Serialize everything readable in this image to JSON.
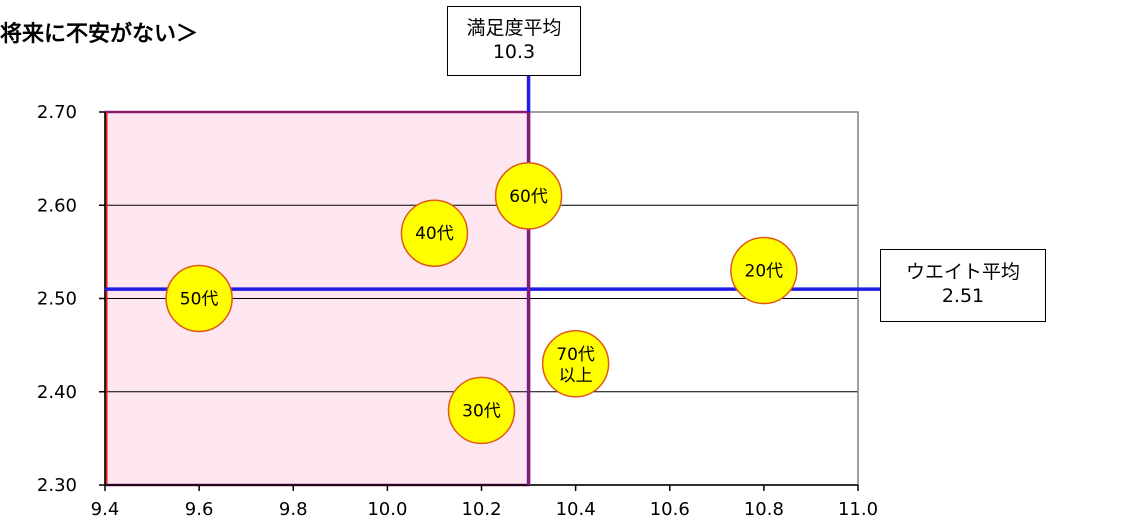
{
  "page_title": "将来に不安がない＞",
  "chart_data": {
    "type": "scatter",
    "title": "将来に不安がない＞",
    "xlabel": "",
    "ylabel": "",
    "xlim": [
      9.4,
      11.0
    ],
    "ylim": [
      2.3,
      2.7
    ],
    "x_ticks": [
      "9.4",
      "9.6",
      "9.8",
      "10.0",
      "10.2",
      "10.4",
      "10.6",
      "10.8",
      "11.0"
    ],
    "y_ticks": [
      "2.30",
      "2.40",
      "2.50",
      "2.60",
      "2.70"
    ],
    "points": [
      {
        "label": "20代",
        "x": 10.8,
        "y": 2.53
      },
      {
        "label": "30代",
        "x": 10.2,
        "y": 2.38
      },
      {
        "label": "40代",
        "x": 10.1,
        "y": 2.57
      },
      {
        "label": "50代",
        "x": 9.6,
        "y": 2.5
      },
      {
        "label": "60代",
        "x": 10.3,
        "y": 2.61
      },
      {
        "label": "70代\n以上",
        "x": 10.4,
        "y": 2.43
      }
    ],
    "averages": {
      "x": {
        "label": "満足度平均",
        "value": "10.3"
      },
      "y": {
        "label": "ウエイト平均",
        "value": "2.51"
      }
    },
    "highlight_region": {
      "x": [
        9.4,
        10.3
      ],
      "y": [
        2.3,
        2.7
      ],
      "color": "#fde6f0"
    },
    "grid": true,
    "colors": {
      "marker_fill": "#ffff00",
      "marker_stroke": "#e05a1a",
      "average_line": "#1e1ee6",
      "highlight_border": "#8b1a6e",
      "frame": "#808080"
    }
  }
}
